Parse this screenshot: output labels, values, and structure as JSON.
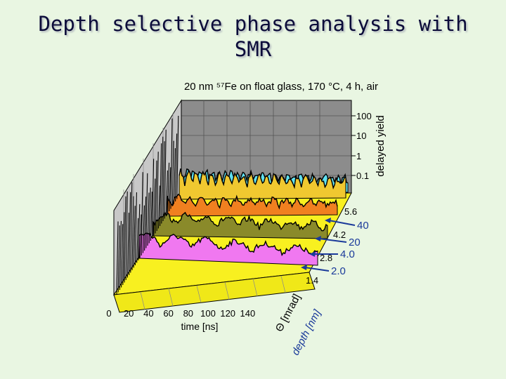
{
  "slide": {
    "title_line1": "Depth selective phase analysis with",
    "title_line2": "SMR"
  },
  "chart_data": {
    "type": "surface-3d",
    "title": "20 nm ⁵⁷Fe on float glass, 170 °C, 4 h, air",
    "x_axis": {
      "label": "time [ns]",
      "ticks": [
        "0",
        "20",
        "40",
        "60",
        "80",
        "100",
        "120",
        "140"
      ]
    },
    "z_axis": {
      "label": "delayed yield",
      "scale": "log",
      "ticks": [
        "0.1",
        "1",
        "10",
        "100"
      ]
    },
    "theta_axis": {
      "label": "Θ [mrad]",
      "ticks": [
        "5.6",
        "4.2",
        "2.8",
        "1.4"
      ]
    },
    "depth_axis": {
      "label": "depth [nm]",
      "ticks": [
        "40",
        "20",
        "4.0",
        "2.0"
      ]
    },
    "colors": {
      "wall": "#8c8c8c",
      "floor": "#f8f020",
      "curve_fill": [
        "#f078f0",
        "#8a8a2a",
        "#f08020",
        "#f0c830",
        "#60e0f0"
      ],
      "arrow": "#1a3a9a"
    }
  }
}
